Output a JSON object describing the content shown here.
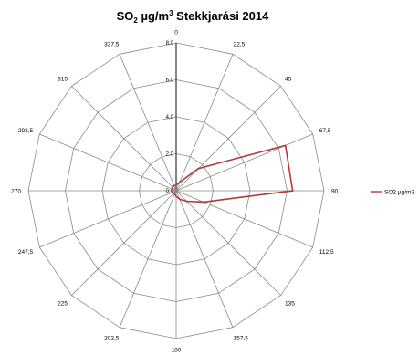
{
  "chart_data": {
    "type": "radar",
    "title_parts": {
      "pre": "SO",
      "sub": "2",
      "mid": " µg/m",
      "sup": "3",
      "post": " Stekkjarási 2014"
    },
    "categories": [
      "0",
      "22,5",
      "45",
      "67,5",
      "90",
      "112,5",
      "135",
      "157,5",
      "180",
      "202,5",
      "225",
      "247,5",
      "270",
      "292,5",
      "315",
      "337,5"
    ],
    "radial_ticks": [
      "0,0",
      "2,0",
      "4,0",
      "6,0",
      "8,0"
    ],
    "rlim": [
      0,
      8
    ],
    "grid": true,
    "legend": "right",
    "series": [
      {
        "name": "SO2 µg/m3",
        "color": "#b03a3e",
        "values": [
          0.3,
          0.5,
          1.7,
          6.4,
          6.3,
          1.6,
          0.8,
          0.5,
          0.3,
          0.2,
          0.2,
          0.2,
          0.2,
          0.2,
          0.3,
          0.3
        ]
      }
    ]
  }
}
